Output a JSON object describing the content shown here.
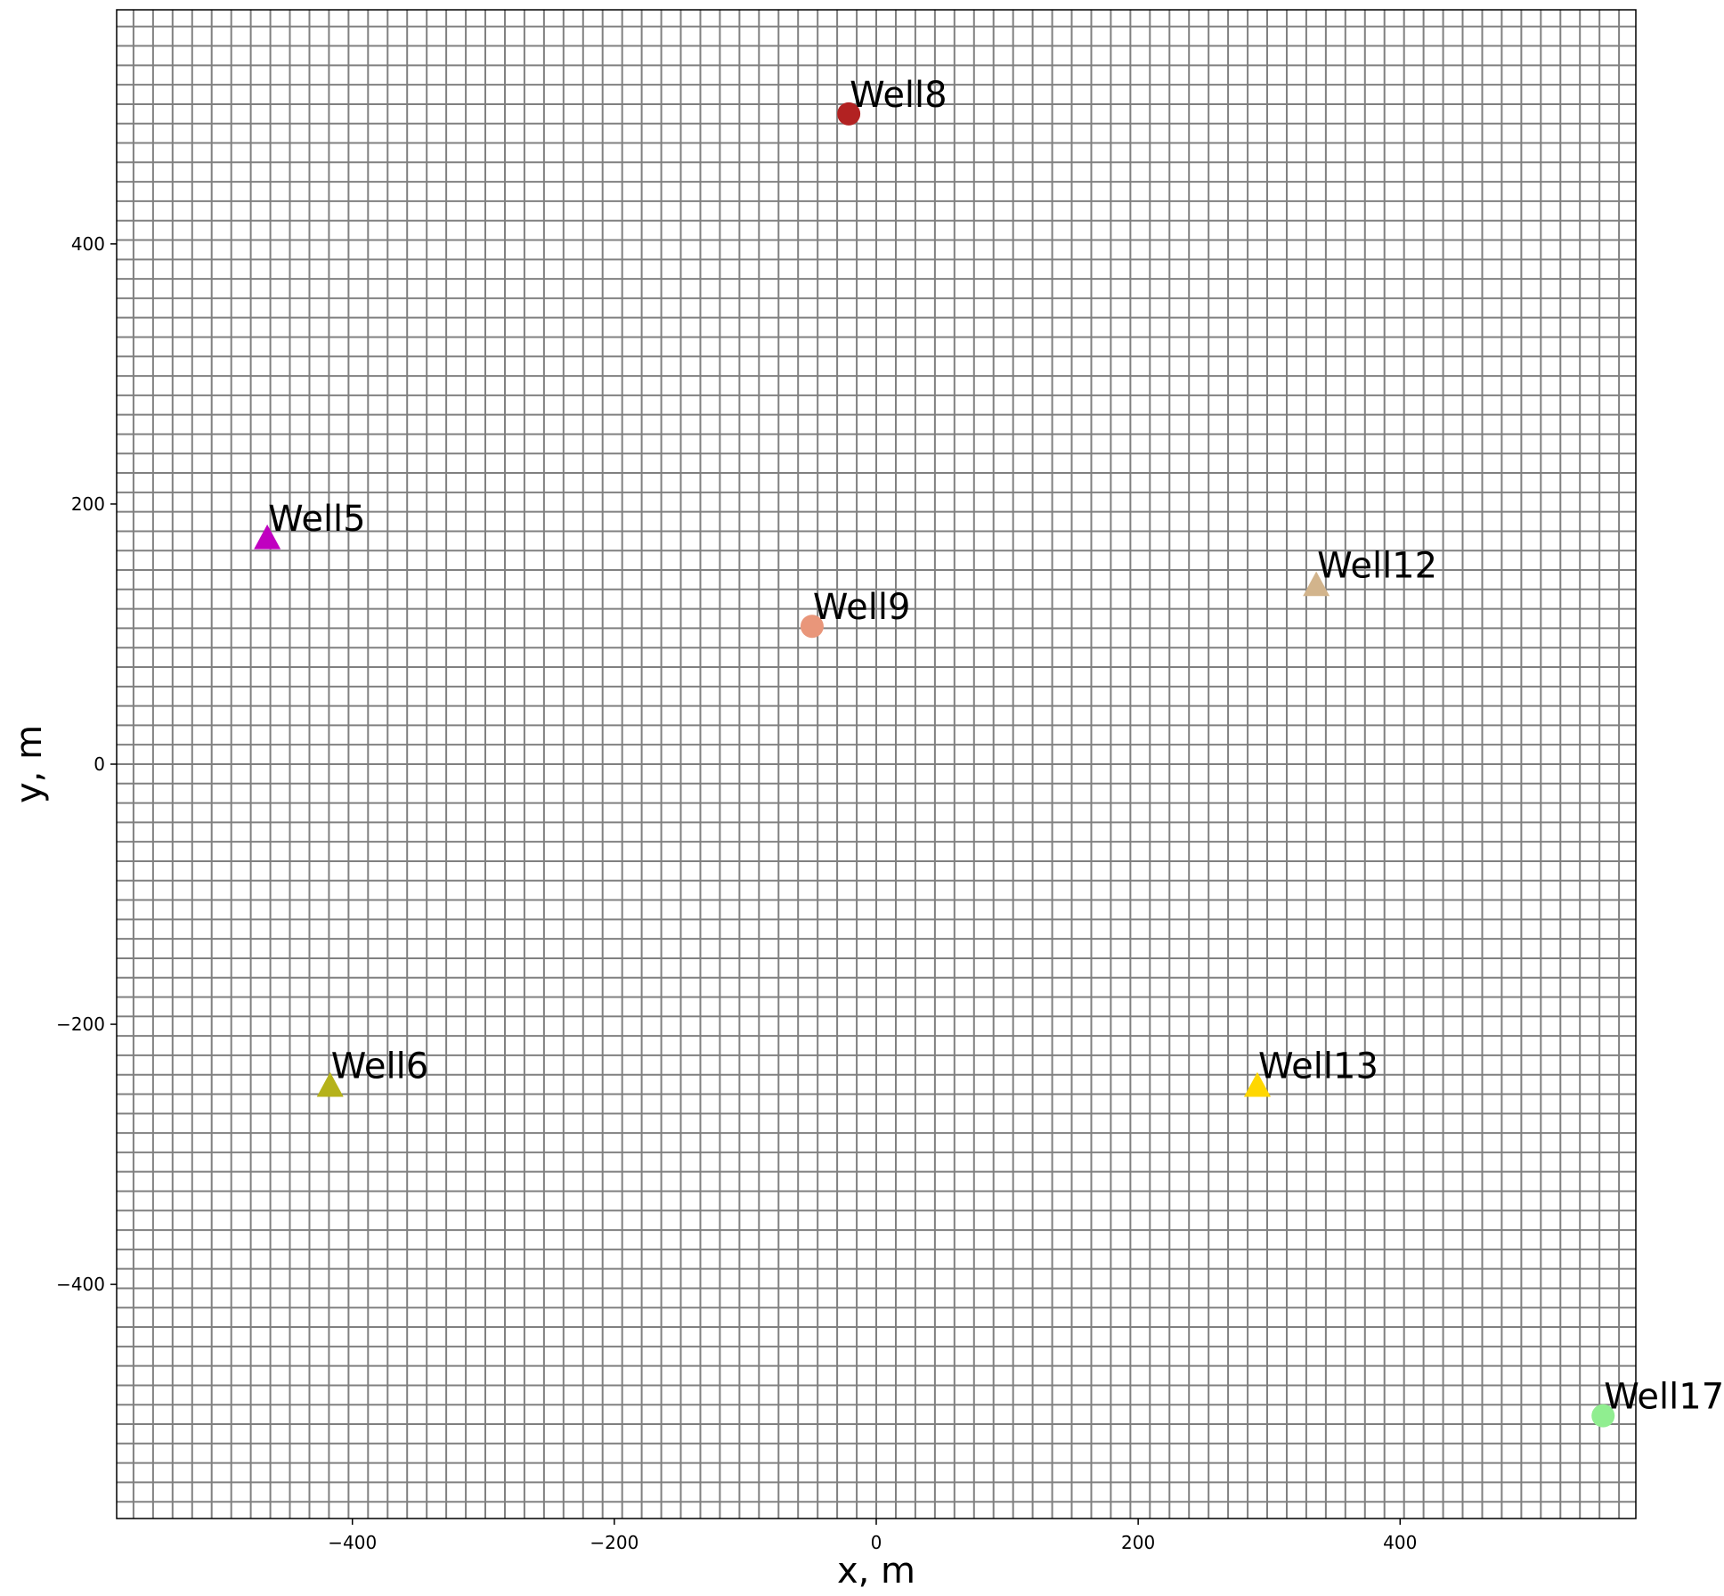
{
  "chart_data": {
    "type": "scatter",
    "xlabel": "x, m",
    "ylabel": "y, m",
    "xlim": [
      -580,
      580
    ],
    "ylim": [
      -580,
      580
    ],
    "xticks": [
      -400,
      -200,
      0,
      200,
      400
    ],
    "yticks": [
      -400,
      -200,
      0,
      200,
      400
    ],
    "grid": true,
    "grid_spacing": 29.85,
    "grid_color": "#808080",
    "points": [
      {
        "label": "Well5",
        "x": -465,
        "y": 174,
        "marker": "triangle",
        "color": "#c000c0"
      },
      {
        "label": "Well6",
        "x": -417,
        "y": -247,
        "marker": "triangle",
        "color": "#b5b21a"
      },
      {
        "label": "Well8",
        "x": -21,
        "y": 500,
        "marker": "circle",
        "color": "#b22222"
      },
      {
        "label": "Well9",
        "x": -49,
        "y": 106,
        "marker": "circle",
        "color": "#e9967a"
      },
      {
        "label": "Well12",
        "x": 336,
        "y": 138,
        "marker": "triangle",
        "color": "#d2b48c"
      },
      {
        "label": "Well13",
        "x": 291,
        "y": -247,
        "marker": "triangle",
        "color": "#ffd700"
      },
      {
        "label": "Well17",
        "x": 555,
        "y": -501,
        "marker": "circle",
        "color": "#90ee90"
      }
    ]
  }
}
